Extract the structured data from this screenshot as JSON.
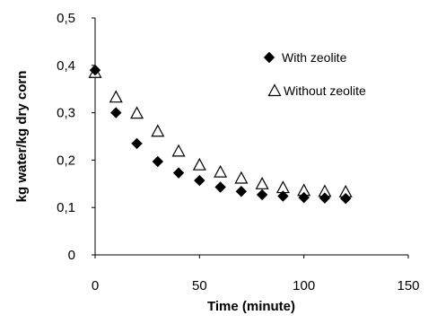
{
  "chart_data": {
    "type": "scatter",
    "title": "",
    "xlabel": "Time (minute)",
    "ylabel": "kg water/kg dry corn",
    "xlim": [
      0,
      150
    ],
    "ylim": [
      0,
      0.5
    ],
    "xticks": [
      0,
      50,
      100,
      150
    ],
    "yticks": [
      0,
      0.1,
      0.2,
      0.3,
      0.4,
      0.5
    ],
    "xtick_labels": [
      "0",
      "50",
      "100",
      "150"
    ],
    "ytick_labels": [
      "0",
      "0,1",
      "0,2",
      "0,3",
      "0,4",
      "0,5"
    ],
    "grid": false,
    "legend_position": "top-right",
    "series": [
      {
        "name": "With zeolite",
        "marker": "filled-diamond",
        "color": "#000000",
        "x": [
          0,
          10,
          20,
          30,
          40,
          50,
          60,
          70,
          80,
          90,
          100,
          110,
          120
        ],
        "y": [
          0.39,
          0.3,
          0.235,
          0.197,
          0.173,
          0.157,
          0.143,
          0.134,
          0.127,
          0.124,
          0.121,
          0.12,
          0.119
        ]
      },
      {
        "name": "Without zeolite",
        "marker": "open-triangle",
        "color": "#000000",
        "x": [
          0,
          10,
          20,
          30,
          40,
          50,
          60,
          70,
          80,
          90,
          100,
          110,
          120
        ],
        "y": [
          0.385,
          0.333,
          0.299,
          0.261,
          0.219,
          0.19,
          0.175,
          0.162,
          0.15,
          0.142,
          0.136,
          0.134,
          0.133
        ]
      }
    ]
  }
}
